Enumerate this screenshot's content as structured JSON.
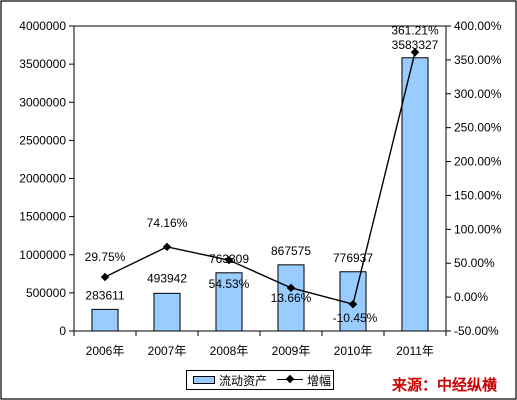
{
  "chart_data": {
    "type": "bar+line",
    "categories": [
      "2006年",
      "2007年",
      "2008年",
      "2009年",
      "2010年",
      "2011年"
    ],
    "series": [
      {
        "name": "流动资产",
        "type": "bar",
        "axis": "left",
        "color": "#99ccff",
        "values": [
          283611,
          493942,
          763309,
          867575,
          776937,
          3583327
        ],
        "labels": [
          "283611",
          "493942",
          "763309",
          "867575",
          "776937",
          "3583327"
        ]
      },
      {
        "name": "增幅",
        "type": "line",
        "axis": "right",
        "color": "#000000",
        "values": [
          29.75,
          74.16,
          54.53,
          13.66,
          -10.45,
          361.21
        ],
        "labels": [
          "29.75%",
          "74.16%",
          "54.53%",
          "13.66%",
          "-10.45%",
          "361.21%"
        ]
      }
    ],
    "y_left": {
      "min": 0,
      "max": 4000000,
      "ticks": [
        "0",
        "500000",
        "1000000",
        "1500000",
        "2000000",
        "2500000",
        "3000000",
        "3500000",
        "4000000"
      ]
    },
    "y_right": {
      "min": -50,
      "max": 400,
      "ticks": [
        "-50.00%",
        "0.00%",
        "50.00%",
        "100.00%",
        "150.00%",
        "200.00%",
        "250.00%",
        "300.00%",
        "350.00%",
        "400.00%"
      ]
    },
    "legend_position": "bottom-center",
    "grid": false
  },
  "source": "来源：中经纵横"
}
